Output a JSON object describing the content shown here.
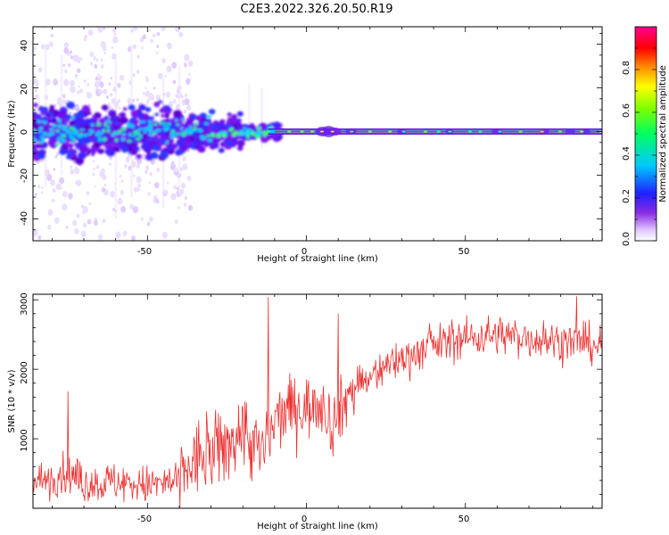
{
  "title": "C2E3.2022.326.20.50.R19",
  "colors": {
    "snr_line": "#ee3030",
    "frame": "#000000"
  },
  "chart_data": [
    {
      "type": "heatmap",
      "xlabel": "Height of straight line (km)",
      "ylabel": "Frequency (Hz)",
      "xlim": [
        -86,
        93
      ],
      "ylim": [
        -50,
        48
      ],
      "xticks": [
        "-50",
        "0",
        "50"
      ],
      "yticks": [
        "40",
        "20",
        "0",
        "-20",
        "-40"
      ],
      "colorbar": {
        "label": "Normalized spectral amplitude",
        "range": [
          0,
          1
        ],
        "ticks": [
          "0.0",
          "0.2",
          "0.4",
          "0.6",
          "0.8"
        ],
        "colormap": "rainbow (white-violet-blue-cyan-green-yellow-red-magenta)"
      },
      "description_points": [
        {
          "x": -80,
          "f_spread": 12
        },
        {
          "x": -40,
          "f_spread": 8
        },
        {
          "x": -12,
          "f_spread": 3
        },
        {
          "x": 92,
          "f_spread": 1
        }
      ]
    },
    {
      "type": "line",
      "xlabel": "Height of straight line (km)",
      "ylabel": "SNR (10 * v/v)",
      "xlim": [
        -86,
        93
      ],
      "ylim": [
        0,
        3080
      ],
      "xticks": [
        "-50",
        "0",
        "50"
      ],
      "yticks": [
        "3000",
        "2000",
        "1000"
      ],
      "series": [
        {
          "color": "#ee3030",
          "x": [
            -86,
            -80,
            -75,
            -70,
            -60,
            -50,
            -40,
            -35,
            -30,
            -25,
            -20,
            -15,
            -12,
            -10,
            -5,
            0,
            5,
            8,
            10,
            12,
            15,
            20,
            25,
            30,
            40,
            50,
            60,
            70,
            80,
            93
          ],
          "y": [
            350,
            450,
            500,
            350,
            380,
            330,
            380,
            700,
            750,
            900,
            1150,
            800,
            900,
            1250,
            1450,
            1450,
            1550,
            1200,
            1300,
            1550,
            1750,
            1850,
            2050,
            2150,
            2350,
            2450,
            2500,
            2450,
            2400,
            2350
          ]
        }
      ],
      "spikes": [
        {
          "x": -75,
          "y": 1680
        },
        {
          "x": -12,
          "y": 3040
        },
        {
          "x": 10,
          "y": 2800
        },
        {
          "x": 85,
          "y": 3050
        }
      ]
    }
  ]
}
